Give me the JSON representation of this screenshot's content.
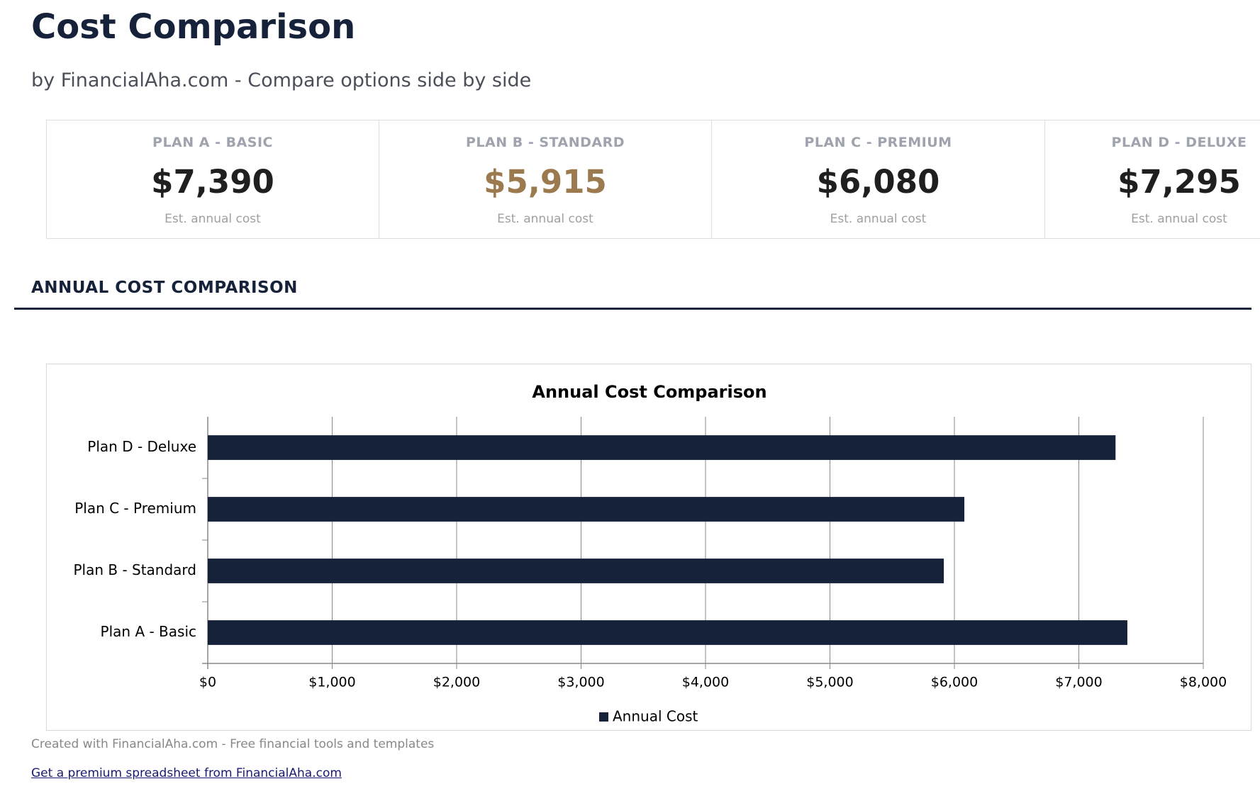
{
  "header": {
    "title": "Cost Comparison",
    "subtitle": "by FinancialAha.com - Compare options side by side"
  },
  "cards": [
    {
      "label": "PLAN A - BASIC",
      "value": "$7,390",
      "note": "Est. annual cost",
      "color": "#1f1f1f"
    },
    {
      "label": "PLAN B - STANDARD",
      "value": "$5,915",
      "note": "Est. annual cost",
      "color": "#9c7a4f"
    },
    {
      "label": "PLAN C - PREMIUM",
      "value": "$6,080",
      "note": "Est. annual cost",
      "color": "#1f1f1f"
    },
    {
      "label": "PLAN D - DELUXE",
      "value": "$7,295",
      "note": "Est. annual cost",
      "color": "#1f1f1f"
    }
  ],
  "section_title": "ANNUAL COST COMPARISON",
  "chart_data": {
    "type": "bar",
    "orientation": "horizontal",
    "title": "Annual Cost Comparison",
    "categories": [
      "Plan A - Basic",
      "Plan B - Standard",
      "Plan C - Premium",
      "Plan D - Deluxe"
    ],
    "series": [
      {
        "name": "Annual Cost",
        "color": "#16213a",
        "values": [
          7390,
          5915,
          6080,
          7295
        ]
      }
    ],
    "xlim": [
      0,
      8000
    ],
    "xticks": [
      {
        "value": 0,
        "label": "$0"
      },
      {
        "value": 1000,
        "label": "$1,000"
      },
      {
        "value": 2000,
        "label": "$2,000"
      },
      {
        "value": 3000,
        "label": "$3,000"
      },
      {
        "value": 4000,
        "label": "$4,000"
      },
      {
        "value": 5000,
        "label": "$5,000"
      },
      {
        "value": 6000,
        "label": "$6,000"
      },
      {
        "value": 7000,
        "label": "$7,000"
      },
      {
        "value": 8000,
        "label": "$8,000"
      }
    ],
    "grid": true,
    "legend": "bottom"
  },
  "footer": {
    "credit": "Created with FinancialAha.com - Free financial tools and templates",
    "link": "Get a premium spreadsheet from FinancialAha.com"
  }
}
